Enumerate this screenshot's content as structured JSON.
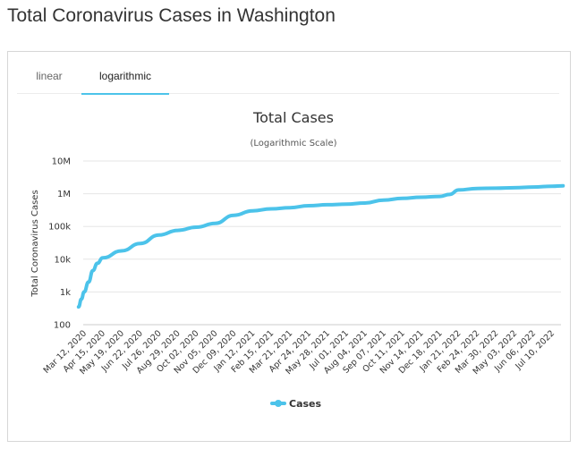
{
  "page": {
    "title": "Total Coronavirus Cases in Washington"
  },
  "tabs": [
    {
      "label": "linear",
      "active": false
    },
    {
      "label": "logarithmic",
      "active": true
    }
  ],
  "colors": {
    "series": "#4cc3ea",
    "grid": "#e6e6e6",
    "tab_active": "#4cc3ea"
  },
  "chart_data": {
    "type": "line",
    "title": "Total Cases",
    "subtitle": "(Logarithmic Scale)",
    "ylabel": "Total Coronavirus Cases",
    "xlabel": "",
    "yscale": "log",
    "ylim": [
      100,
      10000000
    ],
    "y_ticks": [
      {
        "value": 100,
        "label": "100"
      },
      {
        "value": 1000,
        "label": "1k"
      },
      {
        "value": 10000,
        "label": "10k"
      },
      {
        "value": 100000,
        "label": "100k"
      },
      {
        "value": 1000000,
        "label": "1M"
      },
      {
        "value": 10000000,
        "label": "10M"
      }
    ],
    "x_tick_labels": [
      "Mar 12, 2020",
      "Apr 15, 2020",
      "May 19, 2020",
      "Jun 22, 2020",
      "Jul 26, 2020",
      "Aug 29, 2020",
      "Oct 02, 2020",
      "Nov 05, 2020",
      "Dec 09, 2020",
      "Jan 12, 2021",
      "Feb 15, 2021",
      "Mar 21, 2021",
      "Apr 24, 2021",
      "May 28, 2021",
      "Jul 01, 2021",
      "Aug 04, 2021",
      "Sep 07, 2021",
      "Oct 11, 2021",
      "Nov 14, 2021",
      "Dec 18, 2021",
      "Jan 21, 2022",
      "Feb 24, 2022",
      "Mar 30, 2022",
      "May 03, 2022",
      "Jun 06, 2022",
      "Jul 10, 2022"
    ],
    "grid": true,
    "legend": "bottom-center",
    "series": [
      {
        "name": "Cases",
        "color": "#4cc3ea",
        "x": [
          "Mar 02, 2020",
          "Mar 07, 2020",
          "Mar 12, 2020",
          "Mar 20, 2020",
          "Mar 28, 2020",
          "Apr 05, 2020",
          "Apr 15, 2020",
          "May 19, 2020",
          "Jun 22, 2020",
          "Jul 26, 2020",
          "Aug 29, 2020",
          "Oct 02, 2020",
          "Nov 05, 2020",
          "Dec 09, 2020",
          "Jan 12, 2021",
          "Feb 15, 2021",
          "Mar 21, 2021",
          "Apr 24, 2021",
          "May 28, 2021",
          "Jul 01, 2021",
          "Aug 04, 2021",
          "Sep 07, 2021",
          "Oct 11, 2021",
          "Nov 14, 2021",
          "Dec 18, 2021",
          "Jan 05, 2022",
          "Jan 21, 2022",
          "Feb 24, 2022",
          "Mar 30, 2022",
          "May 03, 2022",
          "Jun 06, 2022",
          "Jul 10, 2022",
          "Jul 30, 2022"
        ],
        "y": [
          350,
          600,
          1000,
          2000,
          4500,
          7500,
          11000,
          18000,
          30000,
          55000,
          76000,
          95000,
          125000,
          220000,
          300000,
          345000,
          375000,
          430000,
          460000,
          480000,
          520000,
          640000,
          720000,
          780000,
          830000,
          950000,
          1300000,
          1450000,
          1480000,
          1520000,
          1600000,
          1700000,
          1750000
        ]
      }
    ]
  }
}
